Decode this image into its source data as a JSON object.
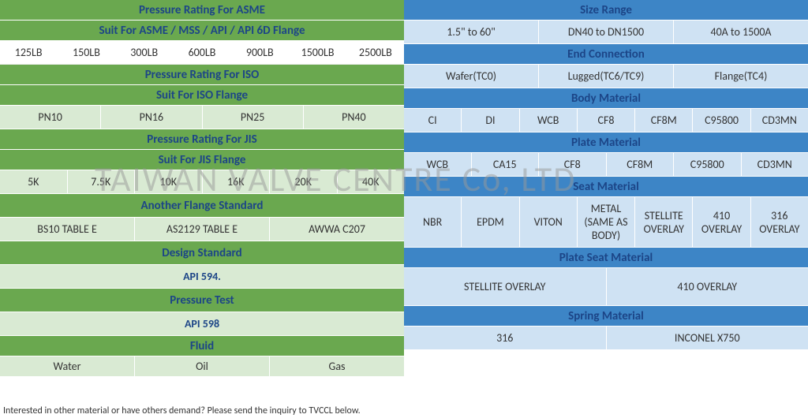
{
  "watermark": "TAIWAN VALVE CENTRE Co, LTD",
  "footer": "Interested in other material or have others demand? Please send the inquiry to TVCCL below.",
  "left": {
    "asme": {
      "h1": "Pressure Rating For ASME",
      "h2": "Suit For ASME / MSS / API / API 6D Flange",
      "vals": [
        "125LB",
        "150LB",
        "300LB",
        "600LB",
        "900LB",
        "1500LB",
        "2500LB"
      ]
    },
    "iso": {
      "h1": "Pressure Rating For ISO",
      "h2": "Suit For ISO Flange",
      "vals": [
        "PN10",
        "PN16",
        "PN25",
        "PN40"
      ]
    },
    "jis": {
      "h1": "Pressure Rating For JIS",
      "h2": "Suit For JIS Flange",
      "vals": [
        "5K",
        "7.5K",
        "10K",
        "16K",
        "20K",
        "40K"
      ]
    },
    "another": {
      "h": "Another Flange Standard",
      "vals": [
        "BS10 TABLE E",
        "AS2129 TABLE E",
        "AWWA C207"
      ]
    },
    "design": {
      "h": "Design Standard",
      "v": "API 594."
    },
    "ptest": {
      "h": "Pressure Test",
      "v": "API 598"
    },
    "fluid": {
      "h": "Fluid",
      "vals": [
        "Water",
        "Oil",
        "Gas"
      ]
    }
  },
  "right": {
    "size": {
      "h": "Size Range",
      "vals": [
        "1.5\" to 60\"",
        "DN40 to DN1500",
        "40A to 1500A"
      ]
    },
    "endconn": {
      "h": "End Connection",
      "vals": [
        "Wafer(TC0)",
        "Lugged(TC6/TC9)",
        "Flange(TC4)"
      ]
    },
    "bodymat": {
      "h": "Body Material",
      "vals": [
        "CI",
        "DI",
        "WCB",
        "CF8",
        "CF8M",
        "C95800",
        "CD3MN"
      ]
    },
    "platemat": {
      "h": "Plate Material",
      "vals": [
        "WCB",
        "CA15",
        "CF8",
        "CF8M",
        "C95800",
        "CD3MN"
      ]
    },
    "seatmat": {
      "h": "Seat Material",
      "vals": [
        "NBR",
        "EPDM",
        "VITON",
        "METAL (SAME AS BODY)",
        "STELLITE OVERLAY",
        "410 OVERLAY",
        "316 OVERLAY"
      ]
    },
    "plateseat": {
      "h": "Plate Seat Material",
      "vals": [
        "STELLITE OVERLAY",
        "410 OVERLAY"
      ]
    },
    "spring": {
      "h": "Spring Material",
      "vals": [
        "316",
        "INCONEL X750"
      ]
    }
  },
  "colors": {
    "green_hdr": "#6aa84f",
    "green_row": "#d9ead3",
    "blue_hdr": "#3d85c6",
    "blue_row": "#cfe2f3",
    "text_hdr": "#1c4587"
  }
}
